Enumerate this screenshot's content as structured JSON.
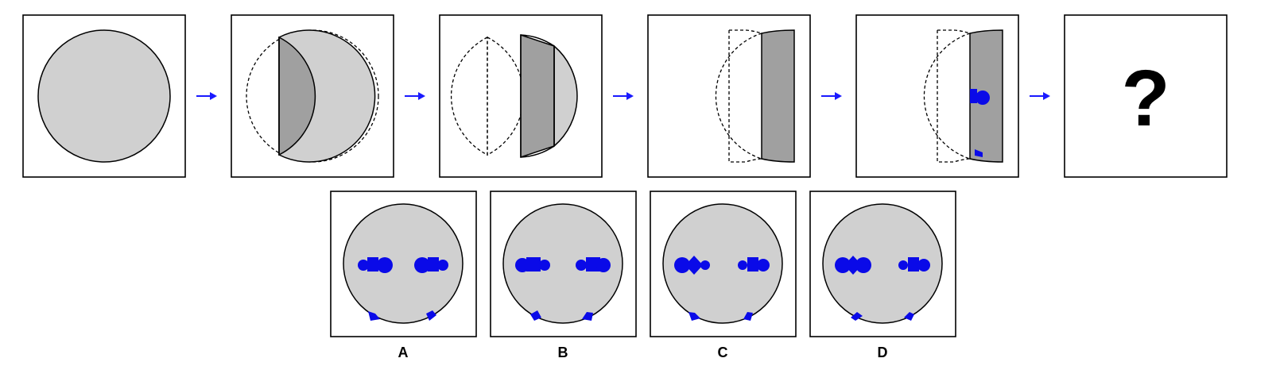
{
  "question_mark": "?",
  "options": [
    {
      "label": "A"
    },
    {
      "label": "B"
    },
    {
      "label": "C"
    },
    {
      "label": "D"
    }
  ],
  "colors": {
    "paper": "#d0d0d0",
    "folded": "#a0a0a0",
    "punch": "#0a0ae8",
    "arrow": "#1a1aff"
  }
}
